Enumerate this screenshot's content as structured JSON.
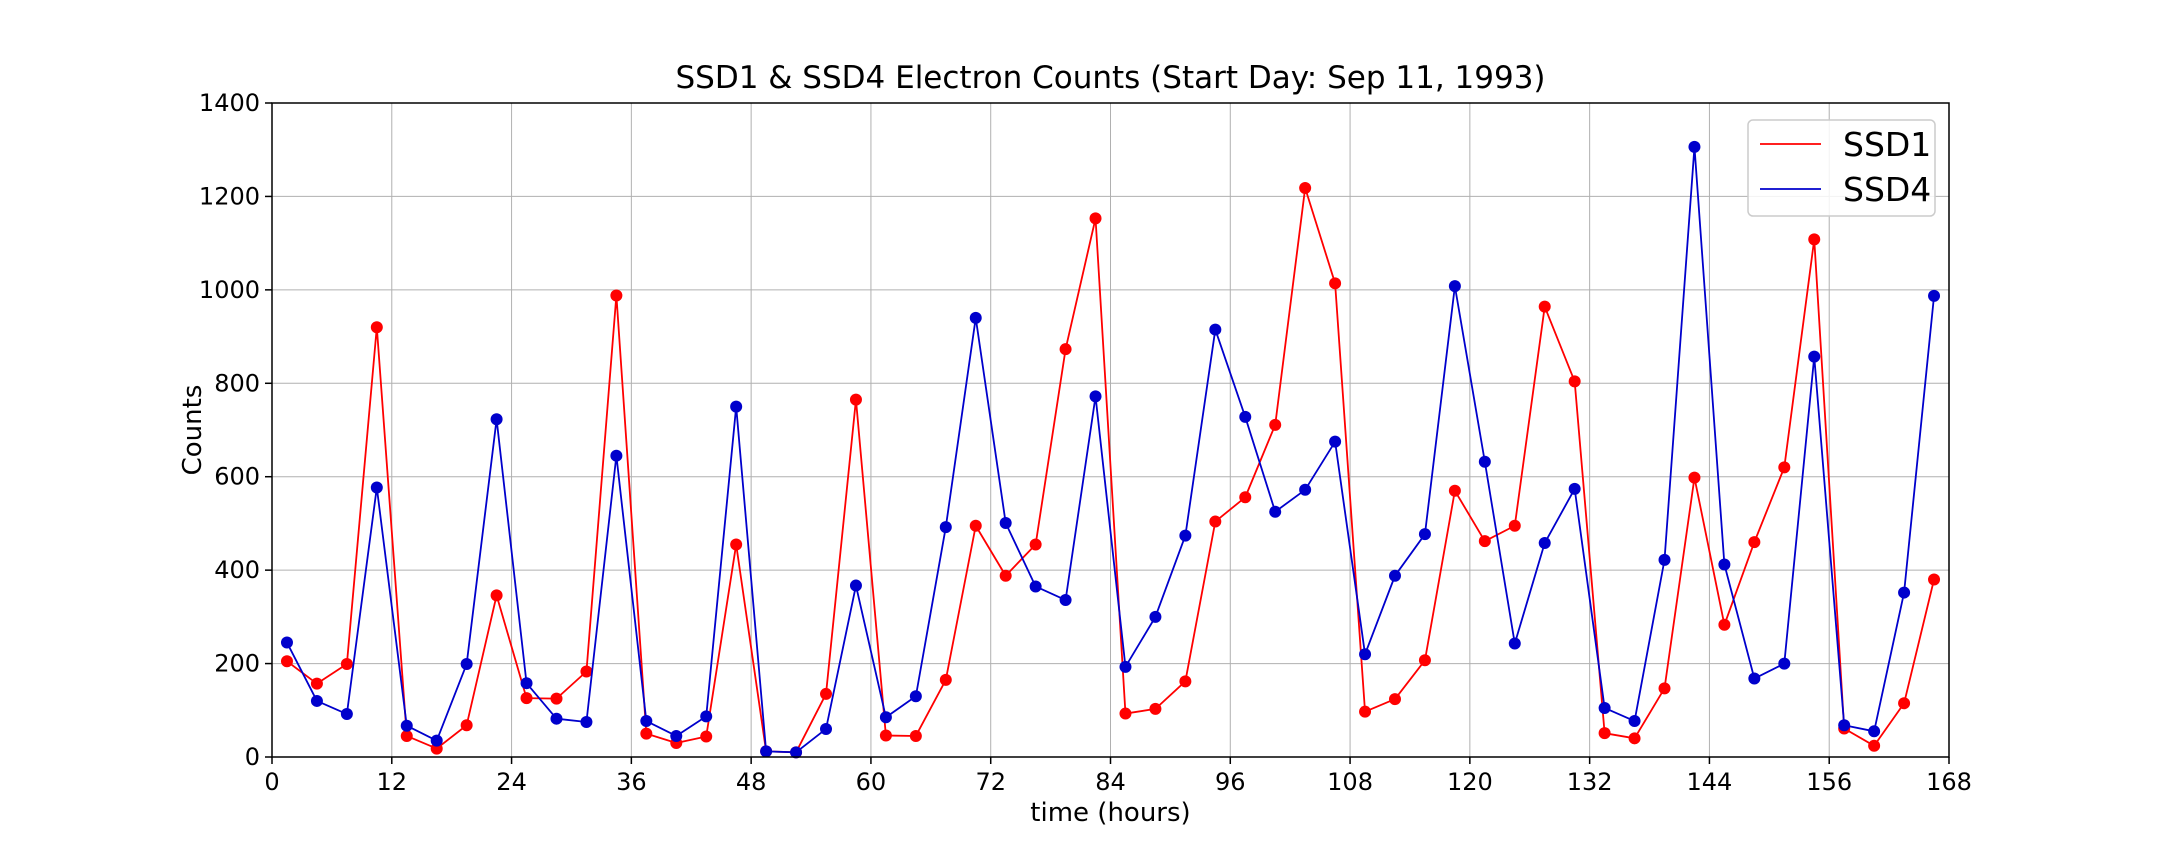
{
  "chart_data": {
    "type": "line",
    "title": "SSD1 & SSD4 Electron Counts (Start Day: Sep 11, 1993)",
    "xlabel": "time (hours)",
    "ylabel": "Counts",
    "xlim": [
      0,
      168
    ],
    "ylim": [
      0,
      1400
    ],
    "xticks": [
      0,
      12,
      24,
      36,
      48,
      60,
      72,
      84,
      96,
      108,
      120,
      132,
      144,
      156,
      168
    ],
    "xtick_labels": [
      "0",
      "12",
      "24",
      "36",
      "48",
      "60",
      "72",
      "84",
      "96",
      "108",
      "120",
      "132",
      "144",
      "156",
      "168"
    ],
    "yticks": [
      0,
      200,
      400,
      600,
      800,
      1000,
      1200,
      1400
    ],
    "ytick_labels": [
      "0",
      "200",
      "400",
      "600",
      "800",
      "1000",
      "1200",
      "1400"
    ],
    "grid": true,
    "legend_position": "top-right",
    "x": [
      1.5,
      4.5,
      7.5,
      10.5,
      13.5,
      16.5,
      19.5,
      22.5,
      25.5,
      28.5,
      31.5,
      34.5,
      37.5,
      40.5,
      43.5,
      46.5,
      49.5,
      52.5,
      55.5,
      58.5,
      61.5,
      64.5,
      67.5,
      70.5,
      73.5,
      76.5,
      79.5,
      82.5,
      85.5,
      88.5,
      91.5,
      94.5,
      97.5,
      100.5,
      103.5,
      106.5,
      109.5,
      112.5,
      115.5,
      118.5,
      121.5,
      124.5,
      127.5,
      130.5,
      133.5,
      136.5,
      139.5,
      142.5,
      145.5,
      148.5,
      151.5,
      154.5,
      157.5,
      160.5,
      163.5,
      166.5
    ],
    "series": [
      {
        "name": "SSD1",
        "color": "#ff0000",
        "values": [
          205,
          157,
          199,
          920,
          45,
          18,
          68,
          346,
          126,
          125,
          183,
          988,
          50,
          30,
          44,
          455,
          12,
          10,
          135,
          765,
          46,
          45,
          165,
          495,
          388,
          455,
          873,
          1153,
          93,
          103,
          162,
          504,
          556,
          711,
          1218,
          1014,
          97,
          124,
          207,
          570,
          462,
          495,
          964,
          804,
          51,
          40,
          147,
          598,
          283,
          460,
          620,
          1108,
          61,
          24,
          115,
          380
        ]
      },
      {
        "name": "SSD4",
        "color": "#0000cc",
        "values": [
          245,
          120,
          92,
          577,
          67,
          35,
          199,
          723,
          158,
          82,
          75,
          645,
          77,
          45,
          87,
          750,
          12,
          10,
          60,
          367,
          85,
          130,
          492,
          940,
          501,
          365,
          336,
          772,
          193,
          300,
          474,
          915,
          728,
          525,
          572,
          675,
          220,
          388,
          477,
          1008,
          632,
          243,
          458,
          574,
          105,
          77,
          422,
          1306,
          412,
          168,
          200,
          857,
          68,
          55,
          352,
          987
        ]
      }
    ]
  }
}
